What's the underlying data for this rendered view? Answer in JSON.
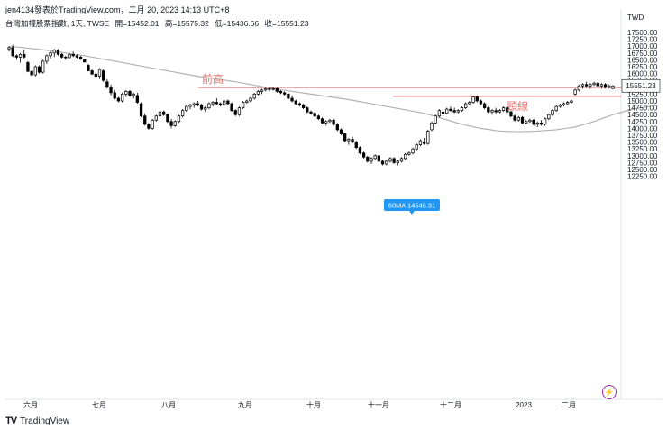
{
  "header": {
    "author": "jen4134發表於TradingView.com，二月 20, 2023 14:13 UTC+8",
    "symbol": "台灣加權股票指數, 1天, TWSE",
    "ohlc": [
      "開=15452.01",
      "高=15575.32",
      "低=15436.66",
      "收=15551.23"
    ]
  },
  "footer": {
    "brand_logo": "TV",
    "brand": "TradingView"
  },
  "badge_icon": "lightning-icon",
  "colors": {
    "up_candle": "#ffffff",
    "down_candle": "#000000",
    "candle_border": "#000000",
    "ma_line": "#b2b2b2",
    "horizontal_line": "#e57373",
    "annotation_text": "#e57373",
    "price_label_bg": "#ffffff",
    "ma_label_bg": "#2196f3"
  },
  "chart_data": {
    "type": "candlestick",
    "currency": "TWD",
    "ylim": [
      12250,
      17750
    ],
    "y_ticks": [
      17750,
      17500,
      17250,
      17000,
      16750,
      16500,
      16250,
      16000,
      15750,
      15500,
      15250,
      15000,
      14750,
      14500,
      14250,
      14000,
      13750,
      13500,
      13250,
      13000,
      12750,
      12500,
      12250
    ],
    "y_tick_labels": [
      "TWD",
      "17500.00",
      "17250.00",
      "17000.00",
      "16750.00",
      "16500.00",
      "16250.00",
      "16000.00",
      "15750.00",
      "15500.00",
      "15250.00",
      "15000.00",
      "14750.00",
      "14500.00",
      "14250.00",
      "14000.00",
      "13750.00",
      "13500.00",
      "13250.00",
      "13000.00",
      "12750.00",
      "12500.00",
      "12250.00"
    ],
    "x_labels": [
      "六月",
      "七月",
      "八月",
      "九月",
      "十月",
      "十一月",
      "十二月",
      "2023",
      "二月"
    ],
    "last_price": 15551.23,
    "last_price_label": "15551.23",
    "ma_label": "60MA 14546.31",
    "annotations": [
      {
        "text": "前高",
        "level": 15490
      },
      {
        "text": "頸線",
        "level": 15170
      }
    ],
    "horizontal_lines": [
      15490,
      15170
    ],
    "candles": [
      [
        16900,
        17000,
        16800,
        16950
      ],
      [
        16950,
        17050,
        16600,
        16650
      ],
      [
        16650,
        16700,
        16500,
        16600
      ],
      [
        16600,
        16750,
        16400,
        16700
      ],
      [
        16700,
        16850,
        16550,
        16600
      ],
      [
        16400,
        16450,
        16050,
        16080
      ],
      [
        16080,
        16100,
        15900,
        15950
      ],
      [
        15950,
        16300,
        15900,
        16250
      ],
      [
        16250,
        16300,
        16000,
        16050
      ],
      [
        16050,
        16500,
        16000,
        16450
      ],
      [
        16450,
        16700,
        16350,
        16650
      ],
      [
        16650,
        16800,
        16550,
        16750
      ],
      [
        16750,
        16900,
        16600,
        16850
      ],
      [
        16850,
        16900,
        16650,
        16700
      ],
      [
        16700,
        16750,
        16550,
        16600
      ],
      [
        16600,
        16650,
        16500,
        16580
      ],
      [
        16580,
        16750,
        16550,
        16700
      ],
      [
        16700,
        16800,
        16600,
        16650
      ],
      [
        16650,
        16700,
        16550,
        16600
      ],
      [
        16600,
        16650,
        16500,
        16520
      ],
      [
        16500,
        16520,
        16400,
        16420
      ],
      [
        16300,
        16350,
        16080,
        16100
      ],
      [
        16100,
        16150,
        15950,
        15980
      ],
      [
        15980,
        16050,
        15850,
        15900
      ],
      [
        15900,
        16200,
        15800,
        16150
      ],
      [
        16100,
        16150,
        15700,
        15750
      ],
      [
        15700,
        15800,
        15450,
        15500
      ],
      [
        15500,
        15600,
        15200,
        15300
      ],
      [
        15300,
        15400,
        15050,
        15100
      ],
      [
        15100,
        15150,
        14950,
        15000
      ],
      [
        15000,
        15300,
        14950,
        15250
      ],
      [
        15250,
        15400,
        15150,
        15350
      ],
      [
        15350,
        15400,
        15150,
        15200
      ],
      [
        15200,
        15300,
        15100,
        15250
      ],
      [
        15200,
        15300,
        14900,
        14950
      ],
      [
        14900,
        14950,
        14400,
        14450
      ],
      [
        14450,
        14550,
        14100,
        14150
      ],
      [
        14150,
        14200,
        13950,
        14000
      ],
      [
        14000,
        14350,
        13950,
        14300
      ],
      [
        14300,
        14500,
        14250,
        14450
      ],
      [
        14450,
        14650,
        14400,
        14600
      ],
      [
        14600,
        14650,
        14450,
        14500
      ],
      [
        14500,
        14550,
        14200,
        14250
      ],
      [
        14250,
        14350,
        14000,
        14100
      ],
      [
        14100,
        14300,
        14050,
        14250
      ],
      [
        14250,
        14500,
        14200,
        14450
      ],
      [
        14450,
        14700,
        14400,
        14650
      ],
      [
        14650,
        14850,
        14600,
        14800
      ],
      [
        14800,
        14900,
        14700,
        14850
      ],
      [
        14850,
        14950,
        14750,
        14900
      ],
      [
        14900,
        15000,
        14800,
        14850
      ],
      [
        14850,
        14900,
        14650,
        14700
      ],
      [
        14700,
        14800,
        14600,
        14750
      ],
      [
        14750,
        14950,
        14700,
        14900
      ],
      [
        14900,
        15000,
        14800,
        14950
      ],
      [
        14950,
        15100,
        14850,
        14900
      ],
      [
        14900,
        14950,
        14800,
        14850
      ],
      [
        14850,
        15050,
        14800,
        15000
      ],
      [
        15000,
        15050,
        14850,
        14900
      ],
      [
        14900,
        14950,
        14600,
        14650
      ],
      [
        14650,
        14700,
        14450,
        14500
      ],
      [
        14500,
        14800,
        14450,
        14750
      ],
      [
        14750,
        15000,
        14700,
        14950
      ],
      [
        14950,
        15050,
        14900,
        15000
      ],
      [
        15000,
        15150,
        14950,
        15100
      ],
      [
        15100,
        15300,
        15050,
        15250
      ],
      [
        15250,
        15400,
        15200,
        15350
      ],
      [
        15350,
        15450,
        15250,
        15400
      ],
      [
        15400,
        15500,
        15350,
        15450
      ],
      [
        15450,
        15480,
        15350,
        15420
      ],
      [
        15420,
        15500,
        15380,
        15450
      ],
      [
        15450,
        15480,
        15300,
        15350
      ],
      [
        15350,
        15400,
        15250,
        15300
      ],
      [
        15300,
        15350,
        15200,
        15250
      ],
      [
        15250,
        15300,
        15050,
        15100
      ],
      [
        15100,
        15200,
        14950,
        15000
      ],
      [
        15000,
        15050,
        14850,
        14900
      ],
      [
        14900,
        14950,
        14800,
        14850
      ],
      [
        14850,
        14900,
        14700,
        14750
      ],
      [
        14750,
        14800,
        14550,
        14600
      ],
      [
        14600,
        14650,
        14500,
        14550
      ],
      [
        14550,
        14600,
        14400,
        14450
      ],
      [
        14450,
        14500,
        14300,
        14350
      ],
      [
        14350,
        14400,
        14150,
        14200
      ],
      [
        14200,
        14300,
        14100,
        14250
      ],
      [
        14250,
        14350,
        14200,
        14300
      ],
      [
        14300,
        14350,
        14100,
        14150
      ],
      [
        14150,
        14200,
        13900,
        13950
      ],
      [
        13950,
        14000,
        13750,
        13800
      ],
      [
        13800,
        13850,
        13500,
        13550
      ],
      [
        13550,
        13650,
        13400,
        13600
      ],
      [
        13600,
        13700,
        13450,
        13500
      ],
      [
        13500,
        13550,
        13250,
        13300
      ],
      [
        13300,
        13350,
        13050,
        13100
      ],
      [
        13100,
        13150,
        12900,
        12950
      ],
      [
        12950,
        13000,
        12750,
        12800
      ],
      [
        12800,
        12950,
        12700,
        12900
      ],
      [
        12900,
        13050,
        12850,
        13000
      ],
      [
        13000,
        13050,
        12750,
        12800
      ],
      [
        12800,
        12850,
        12650,
        12700
      ],
      [
        12700,
        12850,
        12650,
        12800
      ],
      [
        12800,
        12950,
        12750,
        12900
      ],
      [
        12900,
        12950,
        12700,
        12750
      ],
      [
        12750,
        12850,
        12650,
        12800
      ],
      [
        12800,
        12950,
        12750,
        12900
      ],
      [
        12900,
        13100,
        12850,
        13050
      ],
      [
        13050,
        13150,
        13000,
        13100
      ],
      [
        13100,
        13300,
        13050,
        13250
      ],
      [
        13250,
        13450,
        13200,
        13400
      ],
      [
        13400,
        13600,
        13350,
        13550
      ],
      [
        13500,
        13650,
        13400,
        13450
      ],
      [
        13450,
        13950,
        13400,
        13900
      ],
      [
        13950,
        14250,
        13900,
        14200
      ],
      [
        14200,
        14500,
        14150,
        14450
      ],
      [
        14450,
        14700,
        14400,
        14650
      ],
      [
        14600,
        14700,
        14450,
        14550
      ],
      [
        14550,
        14750,
        14500,
        14700
      ],
      [
        14700,
        14800,
        14600,
        14650
      ],
      [
        14650,
        14750,
        14550,
        14600
      ],
      [
        14600,
        14700,
        14550,
        14650
      ],
      [
        14650,
        14800,
        14600,
        14750
      ],
      [
        14750,
        14950,
        14700,
        14900
      ],
      [
        14900,
        15000,
        14850,
        14950
      ],
      [
        14950,
        15200,
        14900,
        15150
      ],
      [
        15150,
        15200,
        14950,
        15000
      ],
      [
        15000,
        15050,
        14850,
        14900
      ],
      [
        14900,
        14950,
        14700,
        14750
      ],
      [
        14750,
        14800,
        14550,
        14600
      ],
      [
        14600,
        14700,
        14500,
        14650
      ],
      [
        14650,
        14750,
        14550,
        14600
      ],
      [
        14600,
        14700,
        14550,
        14650
      ],
      [
        14650,
        14800,
        14600,
        14750
      ],
      [
        14750,
        14800,
        14550,
        14600
      ],
      [
        14600,
        14650,
        14400,
        14450
      ],
      [
        14450,
        14500,
        14250,
        14300
      ],
      [
        14300,
        14450,
        14250,
        14400
      ],
      [
        14400,
        14450,
        14150,
        14200
      ],
      [
        14200,
        14300,
        14150,
        14250
      ],
      [
        14250,
        14350,
        14200,
        14300
      ],
      [
        14300,
        14350,
        14100,
        14150
      ],
      [
        14150,
        14250,
        14050,
        14200
      ],
      [
        14200,
        14300,
        14100,
        14150
      ],
      [
        14150,
        14400,
        14100,
        14350
      ],
      [
        14350,
        14550,
        14300,
        14500
      ],
      [
        14500,
        14700,
        14450,
        14650
      ],
      [
        14650,
        14850,
        14600,
        14800
      ],
      [
        14800,
        14900,
        14750,
        14850
      ],
      [
        14850,
        14950,
        14800,
        14900
      ],
      [
        14900,
        15000,
        14850,
        14950
      ],
      [
        14950,
        15050,
        14900,
        15000
      ],
      [
        15250,
        15450,
        15200,
        15400
      ],
      [
        15400,
        15600,
        15350,
        15550
      ],
      [
        15550,
        15650,
        15450,
        15600
      ],
      [
        15600,
        15700,
        15500,
        15550
      ],
      [
        15550,
        15650,
        15450,
        15600
      ],
      [
        15600,
        15700,
        15550,
        15650
      ],
      [
        15650,
        15700,
        15500,
        15550
      ],
      [
        15550,
        15650,
        15450,
        15600
      ],
      [
        15600,
        15650,
        15450,
        15500
      ],
      [
        15500,
        15600,
        15450,
        15550
      ],
      [
        15452.01,
        15575.32,
        15436.66,
        15551.23
      ]
    ],
    "ma60": [
      [
        0,
        17000
      ],
      [
        10,
        16850
      ],
      [
        20,
        16650
      ],
      [
        30,
        16400
      ],
      [
        40,
        16150
      ],
      [
        50,
        15900
      ],
      [
        60,
        15700
      ],
      [
        70,
        15450
      ],
      [
        80,
        15250
      ],
      [
        90,
        15050
      ],
      [
        100,
        14800
      ],
      [
        110,
        14550
      ],
      [
        115,
        14350
      ],
      [
        120,
        14150
      ],
      [
        125,
        14000
      ],
      [
        130,
        13900
      ],
      [
        135,
        13880
      ],
      [
        140,
        13900
      ],
      [
        145,
        13950
      ],
      [
        150,
        14050
      ],
      [
        155,
        14250
      ],
      [
        160,
        14500
      ],
      [
        165,
        14700
      ],
      [
        170,
        14800
      ]
    ]
  }
}
